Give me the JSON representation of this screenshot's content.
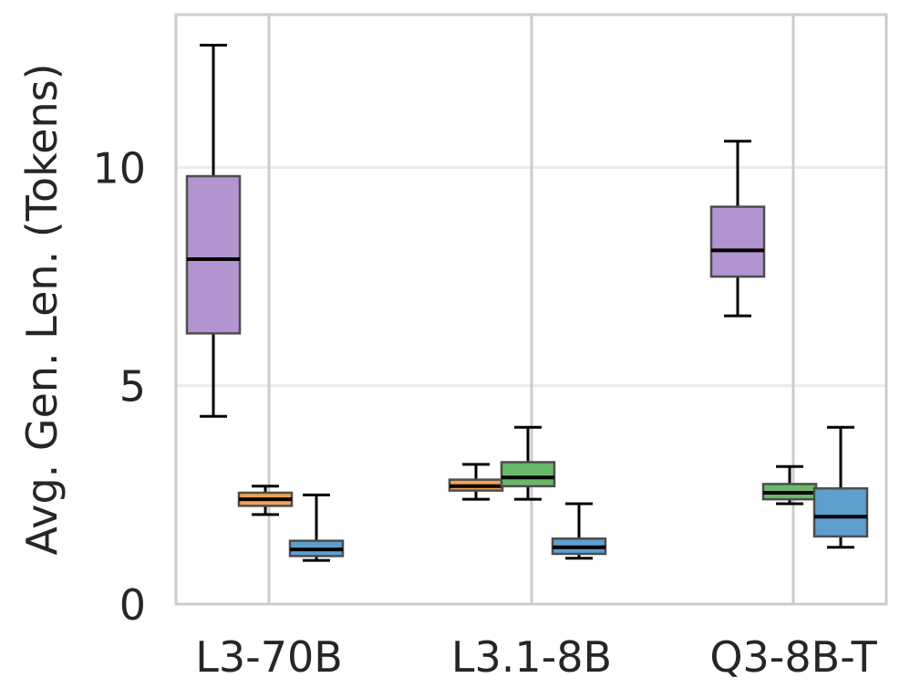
{
  "chart_data": {
    "type": "box",
    "title": "",
    "xlabel": "",
    "ylabel": "Avg. Gen. Len. (Tokens)",
    "ylim": [
      0,
      13.5
    ],
    "yticks": [
      0,
      5,
      10
    ],
    "grid": true,
    "categories": [
      "L3-70B",
      "L3.1-8B",
      "Q3-8B-T"
    ],
    "series_colors": [
      "#b294d1",
      "#f1a154",
      "#6ab96a",
      "#5d9fcd"
    ],
    "groups": [
      {
        "category": "L3-70B",
        "boxes": [
          {
            "series": 0,
            "min": 4.3,
            "q1": 6.2,
            "median": 7.9,
            "q3": 9.8,
            "max": 12.8
          },
          {
            "series": 1,
            "min": 2.05,
            "q1": 2.25,
            "median": 2.4,
            "q3": 2.55,
            "max": 2.7
          },
          {
            "series": 3,
            "min": 1.0,
            "q1": 1.1,
            "median": 1.25,
            "q3": 1.45,
            "max": 2.5
          }
        ]
      },
      {
        "category": "L3.1-8B",
        "boxes": [
          {
            "series": 1,
            "min": 2.4,
            "q1": 2.6,
            "median": 2.7,
            "q3": 2.85,
            "max": 3.2
          },
          {
            "series": 2,
            "min": 2.4,
            "q1": 2.7,
            "median": 2.9,
            "q3": 3.25,
            "max": 4.05
          },
          {
            "series": 3,
            "min": 1.05,
            "q1": 1.15,
            "median": 1.3,
            "q3": 1.5,
            "max": 2.3
          }
        ]
      },
      {
        "category": "Q3-8B-T",
        "boxes": [
          {
            "series": 0,
            "min": 6.6,
            "q1": 7.5,
            "median": 8.1,
            "q3": 9.1,
            "max": 10.6
          },
          {
            "series": 2,
            "min": 2.3,
            "q1": 2.4,
            "median": 2.55,
            "q3": 2.75,
            "max": 3.15
          },
          {
            "series": 3,
            "min": 1.3,
            "q1": 1.55,
            "median": 2.0,
            "q3": 2.65,
            "max": 4.05
          }
        ]
      }
    ]
  }
}
